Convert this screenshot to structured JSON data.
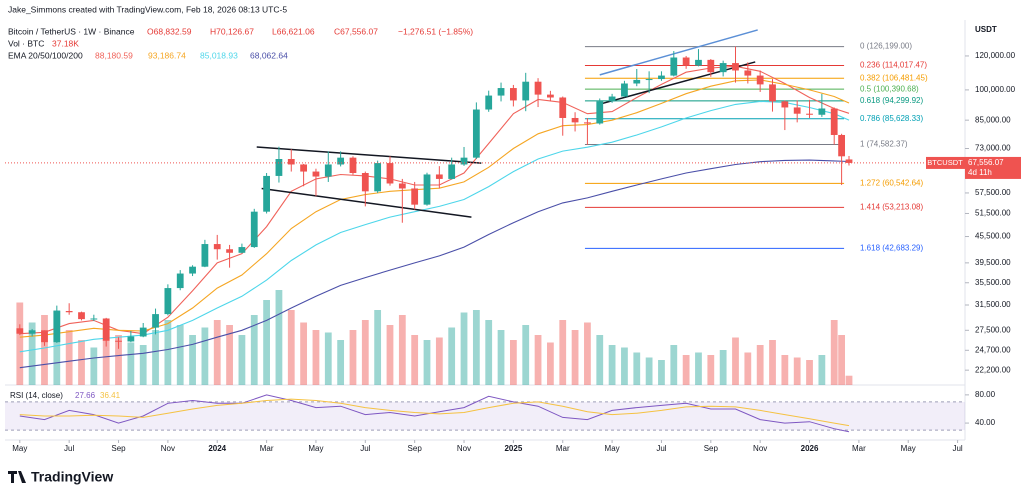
{
  "attribution": "Jake_Simmons created with TradingView.com, Feb 18, 2026 08:13 UTC-5",
  "logo": "TradingView",
  "chart_data": {
    "type": "candlestick",
    "title": "Bitcoin / TetherUS · 1W · Binance",
    "ohlc_legend": [
      "O68,832.59",
      "H70,126.67",
      "L66,621.06",
      "C67,556.07",
      "−1,276.51 (−1.85%)"
    ],
    "volume_legend": {
      "name": "Vol · BTC",
      "value": "37.18K"
    },
    "ema_legend": {
      "name": "EMA 20/50/100/200",
      "values": [
        "88,180.59",
        "93,186.74",
        "85,018.93",
        "68,062.64"
      ]
    },
    "currency": "USDT",
    "symbol": "BTCUSDT",
    "last_price": {
      "value": 67556.07,
      "label": "67,556.07"
    },
    "countdown": "4d 11h",
    "up_color": "#26a69a",
    "down_color": "#ef5350",
    "x": [
      0,
      0.5,
      1,
      1.5,
      2,
      2.5,
      3,
      3.5,
      4,
      4.5,
      5,
      5.5,
      6,
      6.5,
      7,
      7.5,
      8,
      8.5,
      9,
      9.5,
      10,
      10.5,
      11,
      11.5,
      12,
      12.5,
      13,
      13.5,
      14,
      14.5,
      15,
      15.5,
      16,
      16.5,
      17,
      17.5,
      18,
      18.5,
      19,
      19.5,
      20,
      20.5,
      21,
      21.5,
      22,
      22.5,
      23,
      23.5,
      24,
      24.5,
      25,
      25.5,
      26,
      26.5,
      27,
      27.5,
      28,
      28.5,
      29,
      29.5,
      30,
      30.5,
      31,
      31.5,
      32,
      32.5,
      33,
      33.3,
      33.6
    ],
    "ohlc": [
      [
        27800,
        28400,
        26800,
        27000
      ],
      [
        27000,
        27700,
        26600,
        27500
      ],
      [
        27500,
        27500,
        25300,
        25800
      ],
      [
        25800,
        31400,
        25700,
        30500
      ],
      [
        30500,
        31800,
        29900,
        30300
      ],
      [
        30300,
        30400,
        29000,
        29200
      ],
      [
        29200,
        29900,
        28900,
        29300
      ],
      [
        29300,
        29400,
        25200,
        26000
      ],
      [
        26000,
        26500,
        24900,
        25900
      ],
      [
        25900,
        27400,
        25800,
        26600
      ],
      [
        26600,
        28600,
        26500,
        27900
      ],
      [
        27900,
        30900,
        26900,
        30000
      ],
      [
        30000,
        35200,
        29800,
        34500
      ],
      [
        34500,
        38000,
        34100,
        37300
      ],
      [
        37300,
        39000,
        36800,
        38700
      ],
      [
        38700,
        44700,
        38600,
        43700
      ],
      [
        43700,
        45900,
        40200,
        42500
      ],
      [
        42500,
        43500,
        38500,
        41700
      ],
      [
        41700,
        43800,
        41600,
        43000
      ],
      [
        43000,
        52800,
        42800,
        52000
      ],
      [
        52000,
        64000,
        51500,
        63000
      ],
      [
        63000,
        73700,
        60800,
        69000
      ],
      [
        69000,
        72700,
        64500,
        67000
      ],
      [
        67000,
        67200,
        59600,
        64500
      ],
      [
        64500,
        65500,
        56500,
        62800
      ],
      [
        62800,
        71900,
        61000,
        67000
      ],
      [
        67000,
        71900,
        66300,
        69500
      ],
      [
        69500,
        70000,
        63400,
        64000
      ],
      [
        64000,
        64500,
        53500,
        58000
      ],
      [
        58000,
        68400,
        57500,
        67500
      ],
      [
        67500,
        70000,
        59800,
        60500
      ],
      [
        60500,
        62000,
        49000,
        58900
      ],
      [
        58900,
        61000,
        52600,
        54000
      ],
      [
        54000,
        64100,
        53700,
        63500
      ],
      [
        63500,
        66400,
        58900,
        62000
      ],
      [
        62000,
        69500,
        61800,
        67000
      ],
      [
        67000,
        73600,
        66500,
        69500
      ],
      [
        69500,
        93500,
        69000,
        90000
      ],
      [
        90000,
        99600,
        88900,
        97000
      ],
      [
        97000,
        104000,
        94000,
        101000
      ],
      [
        101000,
        102700,
        91500,
        94500
      ],
      [
        94500,
        109600,
        89200,
        104500
      ],
      [
        104500,
        106500,
        91200,
        97500
      ],
      [
        97500,
        99500,
        94000,
        96000
      ],
      [
        96000,
        96500,
        78200,
        86000
      ],
      [
        86000,
        88700,
        80000,
        84000
      ],
      [
        84000,
        86000,
        74500,
        83500
      ],
      [
        83500,
        95500,
        83000,
        94000
      ],
      [
        94000,
        97900,
        93300,
        96500
      ],
      [
        96500,
        105000,
        96200,
        103500
      ],
      [
        103500,
        111900,
        102000,
        105500
      ],
      [
        105500,
        110500,
        98300,
        106000
      ],
      [
        106000,
        110500,
        105000,
        108000
      ],
      [
        108000,
        123200,
        107500,
        119000
      ],
      [
        119000,
        120000,
        112000,
        114000
      ],
      [
        114000,
        124500,
        113500,
        117500
      ],
      [
        117500,
        118000,
        107300,
        110000
      ],
      [
        110000,
        117000,
        107500,
        115500
      ],
      [
        115500,
        126199,
        104000,
        111000
      ],
      [
        111000,
        116000,
        103500,
        108000
      ],
      [
        108000,
        111000,
        98900,
        103000
      ],
      [
        103000,
        106000,
        89000,
        94000
      ],
      [
        94000,
        94500,
        80600,
        91000
      ],
      [
        91000,
        94500,
        84000,
        88000
      ],
      [
        88000,
        94800,
        86000,
        87500
      ],
      [
        87500,
        97900,
        86500,
        90500
      ],
      [
        90500,
        91000,
        74500,
        78500
      ],
      [
        78500,
        79000,
        60000,
        70000
      ],
      [
        68832.59,
        70126.67,
        66621.06,
        67556.07
      ]
    ],
    "volume": [
      330000,
      250000,
      280000,
      300000,
      220000,
      180000,
      150000,
      230000,
      200000,
      170000,
      160000,
      220000,
      260000,
      240000,
      200000,
      230000,
      260000,
      240000,
      200000,
      280000,
      340000,
      380000,
      300000,
      250000,
      220000,
      210000,
      180000,
      220000,
      260000,
      300000,
      240000,
      280000,
      200000,
      180000,
      190000,
      230000,
      290000,
      300000,
      260000,
      220000,
      180000,
      240000,
      200000,
      170000,
      260000,
      220000,
      250000,
      200000,
      160000,
      150000,
      130000,
      110000,
      100000,
      160000,
      120000,
      130000,
      120000,
      140000,
      190000,
      130000,
      160000,
      180000,
      120000,
      110000,
      100000,
      120000,
      260000,
      200000,
      37180
    ],
    "ema": {
      "x": [
        0,
        1,
        2,
        3,
        4,
        5,
        6,
        7,
        8,
        9,
        10,
        11,
        12,
        13,
        14,
        15,
        16,
        17,
        18,
        19,
        20,
        21,
        22,
        23,
        24,
        25,
        26,
        27,
        28,
        29,
        30,
        31,
        32,
        33,
        33.6
      ],
      "series": [
        {
          "color": "#f0625a",
          "values": [
            27000,
            27200,
            28500,
            29000,
            27500,
            27000,
            29500,
            34000,
            39500,
            41500,
            48000,
            58000,
            62000,
            63500,
            63000,
            62000,
            60000,
            60000,
            64000,
            75000,
            88000,
            95000,
            93500,
            88000,
            89000,
            96000,
            103000,
            110000,
            112500,
            113500,
            110500,
            103500,
            96000,
            90500,
            88180.59
          ]
        },
        {
          "color": "#f5a623",
          "values": [
            26500,
            26800,
            27300,
            27800,
            27500,
            27400,
            28500,
            31000,
            34500,
            37000,
            41500,
            47500,
            52000,
            55500,
            57000,
            58000,
            58500,
            59000,
            61000,
            66000,
            73000,
            79000,
            82500,
            83000,
            85000,
            88500,
            93000,
            98000,
            102000,
            105000,
            105500,
            103000,
            100000,
            96500,
            93186.74
          ]
        },
        {
          "color": "#4dd6ea",
          "values": [
            24500,
            25000,
            25600,
            26200,
            26500,
            26800,
            27500,
            29000,
            31000,
            33000,
            36000,
            40000,
            43500,
            46500,
            48500,
            50500,
            52000,
            53500,
            55500,
            59500,
            64500,
            69000,
            72000,
            73500,
            75500,
            78500,
            82000,
            86000,
            89500,
            92500,
            94000,
            93500,
            91000,
            88000,
            85018.93
          ]
        },
        {
          "color": "#4a4fa8",
          "values": [
            22500,
            22900,
            23300,
            23700,
            24000,
            24300,
            24800,
            25500,
            26500,
            27500,
            29000,
            31000,
            33000,
            35000,
            36500,
            38000,
            39500,
            41000,
            43000,
            46000,
            49000,
            52000,
            54500,
            56000,
            58000,
            60000,
            62000,
            64000,
            65500,
            67000,
            68000,
            68500,
            68600,
            68300,
            68062.64
          ]
        }
      ]
    },
    "log_scale": true,
    "ylim": [
      20500,
      144000
    ],
    "yticks": [
      {
        "value": 120000,
        "label": "120,000.00"
      },
      {
        "value": 100000,
        "label": "100,000.00"
      },
      {
        "value": 85000,
        "label": "85,000.00"
      },
      {
        "value": 73000,
        "label": "73,000.00"
      },
      {
        "value": 57500,
        "label": "57,500.00"
      },
      {
        "value": 51500,
        "label": "51,500.00"
      },
      {
        "value": 45500,
        "label": "45,500.00"
      },
      {
        "value": 39500,
        "label": "39,500.00"
      },
      {
        "value": 35500,
        "label": "35,500.00"
      },
      {
        "value": 31500,
        "label": "31,500.00"
      },
      {
        "value": 27500,
        "label": "27,500.00"
      },
      {
        "value": 24700,
        "label": "24,700.00"
      },
      {
        "value": 22200,
        "label": "22,200.00"
      }
    ],
    "xlim": [
      -0.6,
      38.3
    ],
    "xticks": [
      {
        "value": 0,
        "label": "May"
      },
      {
        "value": 2,
        "label": "Jul"
      },
      {
        "value": 4,
        "label": "Sep"
      },
      {
        "value": 6,
        "label": "Nov"
      },
      {
        "value": 8,
        "label": "2024"
      },
      {
        "value": 10,
        "label": "Mar"
      },
      {
        "value": 12,
        "label": "May"
      },
      {
        "value": 14,
        "label": "Jul"
      },
      {
        "value": 16,
        "label": "Sep"
      },
      {
        "value": 18,
        "label": "Nov"
      },
      {
        "value": 20,
        "label": "2025"
      },
      {
        "value": 22,
        "label": "Mar"
      },
      {
        "value": 24,
        "label": "May"
      },
      {
        "value": 26,
        "label": "Jul"
      },
      {
        "value": 28,
        "label": "Sep"
      },
      {
        "value": 30,
        "label": "Nov"
      },
      {
        "value": 32,
        "label": "2026"
      },
      {
        "value": 34,
        "label": "Mar"
      },
      {
        "value": 36,
        "label": "May"
      },
      {
        "value": 38,
        "label": "Jul"
      }
    ],
    "fib": {
      "x": [
        22.9,
        33.4
      ],
      "levels": [
        {
          "value": 126199,
          "label": "0 (126,199.00)",
          "color": "#787b86"
        },
        {
          "value": 114017.47,
          "label": "0.236 (114,017.47)",
          "color": "#e53935"
        },
        {
          "value": 106481.45,
          "label": "0.382 (106,481.45)",
          "color": "#f59d00"
        },
        {
          "value": 100390.68,
          "label": "0.5 (100,390.68)",
          "color": "#4caf50"
        },
        {
          "value": 94299.92,
          "label": "0.618 (94,299.92)",
          "color": "#089981"
        },
        {
          "value": 85628.33,
          "label": "0.786 (85,628.33)",
          "color": "#00a0b4"
        },
        {
          "value": 74582.37,
          "label": "1 (74,582.37)",
          "color": "#787b86"
        },
        {
          "value": 60542.64,
          "label": "1.272 (60,542.64)",
          "color": "#f59d00"
        },
        {
          "value": 53213.08,
          "label": "1.414 (53,213.08)",
          "color": "#e53935"
        },
        {
          "value": 42683.29,
          "label": "1.618 (42,683.29)",
          "color": "#2962ff"
        }
      ]
    },
    "trendlines": [
      {
        "color": "#131722",
        "x": [
          9.6,
          18.7
        ],
        "y": [
          73600,
          67500
        ]
      },
      {
        "color": "#131722",
        "x": [
          9.8,
          18.3
        ],
        "y": [
          58900,
          50500
        ]
      },
      {
        "color": "#5b8fd6",
        "x": [
          23.5,
          29.9
        ],
        "y": [
          108400,
          138000
        ]
      },
      {
        "color": "#131722",
        "x": [
          23.4,
          29.8
        ],
        "y": [
          92300,
          116200
        ]
      }
    ],
    "rsi": {
      "title": "RSI (14, close)",
      "value_labels": [
        "27.66",
        "36.41"
      ],
      "x": [
        0,
        1,
        2,
        3,
        4,
        5,
        6,
        7,
        8,
        9,
        10,
        11,
        12,
        13,
        14,
        15,
        16,
        17,
        18,
        19,
        20,
        21,
        22,
        23,
        24,
        25,
        26,
        27,
        28,
        29,
        30,
        31,
        32,
        33,
        33.6
      ],
      "series": [
        {
          "color": "#7e57c2",
          "values": [
            50,
            45,
            58,
            52,
            40,
            50,
            68,
            72,
            68,
            68,
            80,
            72,
            62,
            64,
            52,
            55,
            50,
            56,
            62,
            78,
            70,
            64,
            48,
            45,
            58,
            62,
            65,
            68,
            60,
            60,
            45,
            40,
            42,
            32,
            27.66
          ]
        },
        {
          "color": "#f5c242",
          "values": [
            52,
            50,
            50,
            51,
            50,
            48,
            54,
            60,
            65,
            68,
            72,
            74,
            72,
            68,
            62,
            58,
            55,
            53,
            55,
            62,
            68,
            70,
            64,
            56,
            52,
            54,
            58,
            63,
            64,
            63,
            58,
            52,
            46,
            40,
            36.41
          ]
        }
      ],
      "ylim": [
        16,
        94
      ],
      "yticks": [
        {
          "value": 80,
          "label": "80.00"
        },
        {
          "value": 40,
          "label": "40.00"
        }
      ],
      "band": [
        30,
        70
      ]
    }
  }
}
